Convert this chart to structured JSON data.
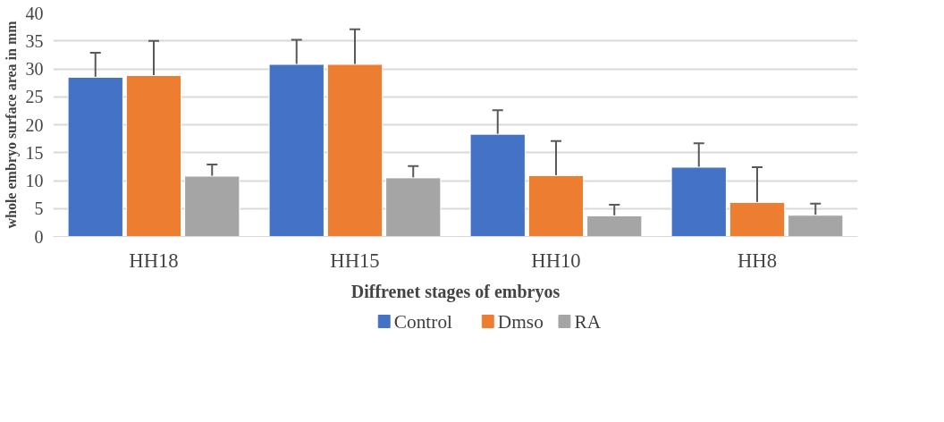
{
  "chart_data": {
    "type": "bar",
    "xlabel": "Diffrenet stages of embryos",
    "ylabel": "whole embryo surface area in mm",
    "categories": [
      "HH18",
      "HH15",
      "HH10",
      "HH8"
    ],
    "series": [
      {
        "name": "Control",
        "color": "#4472c4",
        "values": [
          28.5,
          30.8,
          18.3,
          12.4
        ],
        "errors": [
          [
            28.5,
            32.9
          ],
          [
            30.8,
            35.2
          ],
          [
            18.3,
            22.6
          ],
          [
            12.4,
            16.7
          ]
        ]
      },
      {
        "name": "Dmso",
        "color": "#ed7d31",
        "values": [
          28.8,
          30.8,
          10.9,
          6.1
        ],
        "errors": [
          [
            28.8,
            35.0
          ],
          [
            30.8,
            37.1
          ],
          [
            10.9,
            17.1
          ],
          [
            6.1,
            12.4
          ]
        ]
      },
      {
        "name": "RA",
        "color": "#a5a5a5",
        "values": [
          10.8,
          10.5,
          3.7,
          3.8
        ],
        "errors": [
          [
            10.8,
            12.9
          ],
          [
            10.5,
            12.6
          ],
          [
            3.7,
            5.7
          ],
          [
            3.8,
            5.9
          ]
        ]
      }
    ],
    "ylim": [
      0,
      40
    ],
    "yticks": [
      0,
      5,
      10,
      15,
      20,
      25,
      30,
      35,
      40
    ],
    "grid": "y",
    "legend": "bottom"
  }
}
